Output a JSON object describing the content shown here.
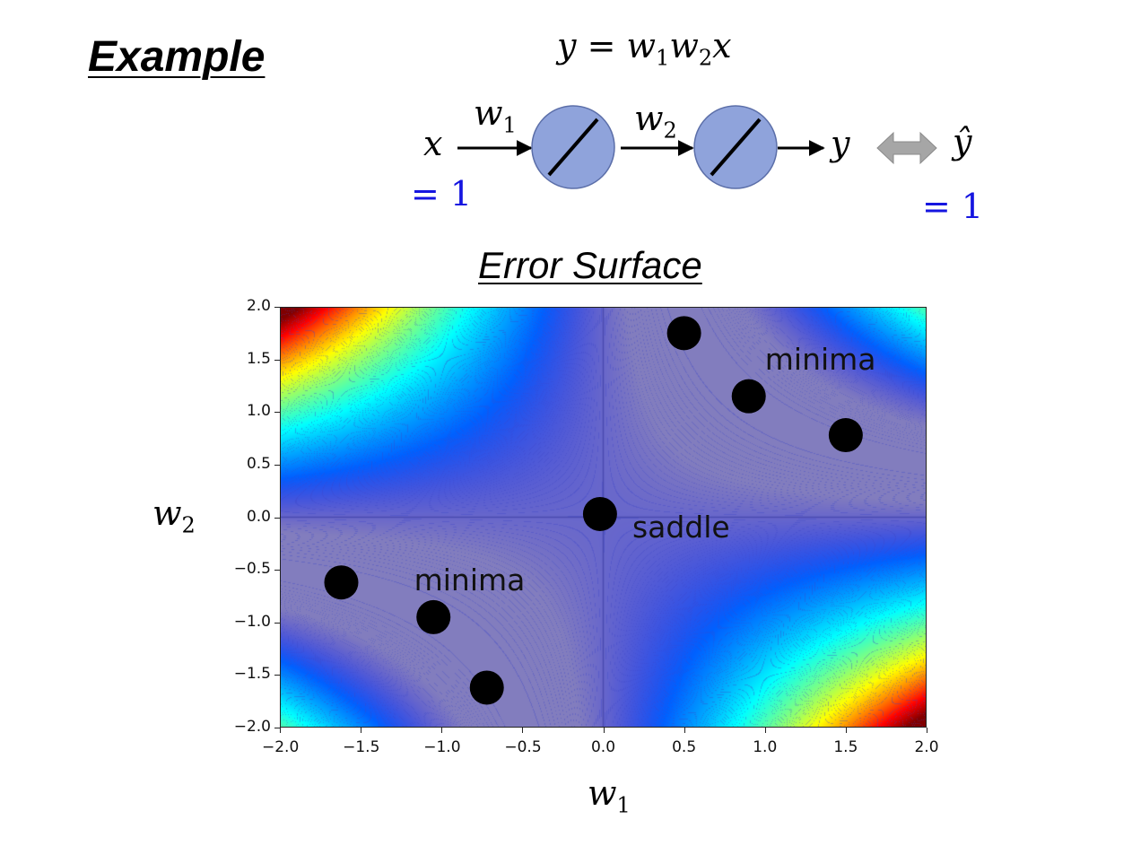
{
  "title": "Example",
  "equation": {
    "lhs": "y",
    "eq": "=",
    "w1": "w",
    "w1_sub": "1",
    "w2": "w",
    "w2_sub": "2",
    "x": "x"
  },
  "network": {
    "input": "x",
    "input_value": "= 1",
    "w1": "w",
    "w1_sub": "1",
    "w2": "w",
    "w2_sub": "2",
    "output": "y",
    "target": "ŷ",
    "target_value": "= 1"
  },
  "surface_title": "Error Surface",
  "colors": {
    "neuron_fill": "#8fa3db",
    "neuron_stroke": "#5b6ea8",
    "value_blue": "#1515e0",
    "arrow_gray": "#a6a6a6"
  },
  "chart_data": {
    "type": "heatmap",
    "function": "(1 - w1*w2)^2",
    "colormap": "jet",
    "xlabel": "w",
    "xlabel_sub": "1",
    "ylabel": "w",
    "ylabel_sub": "2",
    "xlim": [
      -2.0,
      2.0
    ],
    "ylim": [
      -2.0,
      2.0
    ],
    "xticks": [
      "−2.0",
      "−1.5",
      "−1.0",
      "−0.5",
      "0.0",
      "0.5",
      "1.0",
      "1.5",
      "2.0"
    ],
    "yticks": [
      "2.0",
      "1.5",
      "1.0",
      "0.5",
      "0.0",
      "−0.5",
      "−1.0",
      "−1.5",
      "−2.0"
    ],
    "points": [
      {
        "x": 0.5,
        "y": 1.75
      },
      {
        "x": 0.9,
        "y": 1.15
      },
      {
        "x": 1.5,
        "y": 0.78
      },
      {
        "x": -0.02,
        "y": 0.03
      },
      {
        "x": -1.62,
        "y": -0.62
      },
      {
        "x": -1.05,
        "y": -0.95
      },
      {
        "x": -0.72,
        "y": -1.62
      }
    ],
    "annotations": [
      {
        "text": "minima",
        "x": 1.0,
        "y": 1.5
      },
      {
        "text": "saddle",
        "x": 0.18,
        "y": -0.1
      },
      {
        "text": "minima",
        "x": -1.17,
        "y": -0.6
      }
    ]
  }
}
